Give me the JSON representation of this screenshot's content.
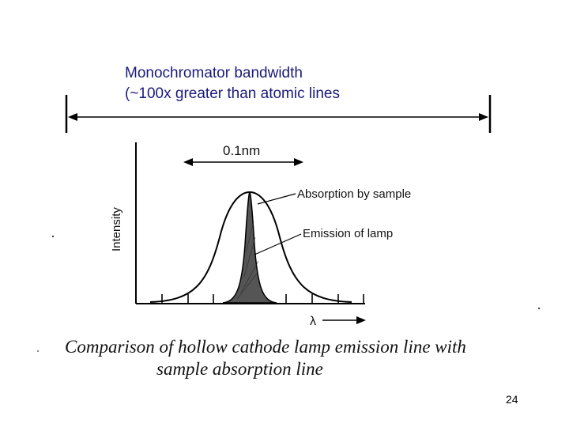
{
  "bandwidth_label": {
    "line1": "Monochromator bandwidth",
    "line2": "(~100x greater than atomic lines"
  },
  "diagram": {
    "width_label": "0.1nm",
    "y_axis_label": "Intensity",
    "x_axis_label": "λ",
    "absorption_label": "Absorption by sample",
    "emission_label": "Emission of lamp",
    "fill_color": "#555555",
    "text_color": "#1a1a7a"
  },
  "caption": {
    "line1": "Comparison of hollow cathode lamp emission line with",
    "line2": "sample absorption line"
  },
  "page_number": "24"
}
